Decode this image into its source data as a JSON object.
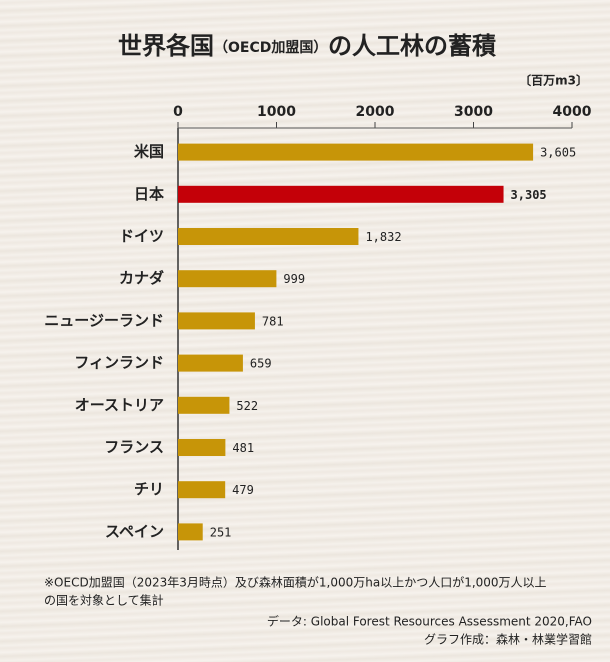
{
  "chart_data": {
    "type": "bar",
    "orientation": "horizontal",
    "title": [
      "世界各国",
      "（OECD加盟国）",
      "の人工林の蓄積"
    ],
    "unit_label": "〔百万m3〕",
    "categories": [
      "米国",
      "日本",
      "ドイツ",
      "カナダ",
      "ニュージーランド",
      "フィンランド",
      "オーストリア",
      "フランス",
      "チリ",
      "スペイン"
    ],
    "values": [
      3605,
      3305,
      1832,
      999,
      781,
      659,
      522,
      481,
      479,
      251
    ],
    "value_labels": [
      "3,605",
      "3,305",
      "1,832",
      "999",
      "781",
      "659",
      "522",
      "481",
      "479",
      "251"
    ],
    "color": "#c79508",
    "colors": [
      "#c79508",
      "#c40008",
      "#c79508",
      "#c79508",
      "#c79508",
      "#c79508",
      "#c79508",
      "#c79508",
      "#c79508",
      "#c79508"
    ],
    "xlim": [
      0,
      4000
    ],
    "xticks": [
      0,
      1000,
      2000,
      3000,
      4000
    ],
    "notes": [
      "※OECD加盟国（2023年3月時点）及び森林面積が1,000万ha以上かつ人口が1,000万人以上",
      "の国を対象として集計"
    ],
    "sources": [
      "データ: Global Forest Resources Assessment 2020,FAO",
      "グラフ作成：森林・林業学習館"
    ]
  }
}
